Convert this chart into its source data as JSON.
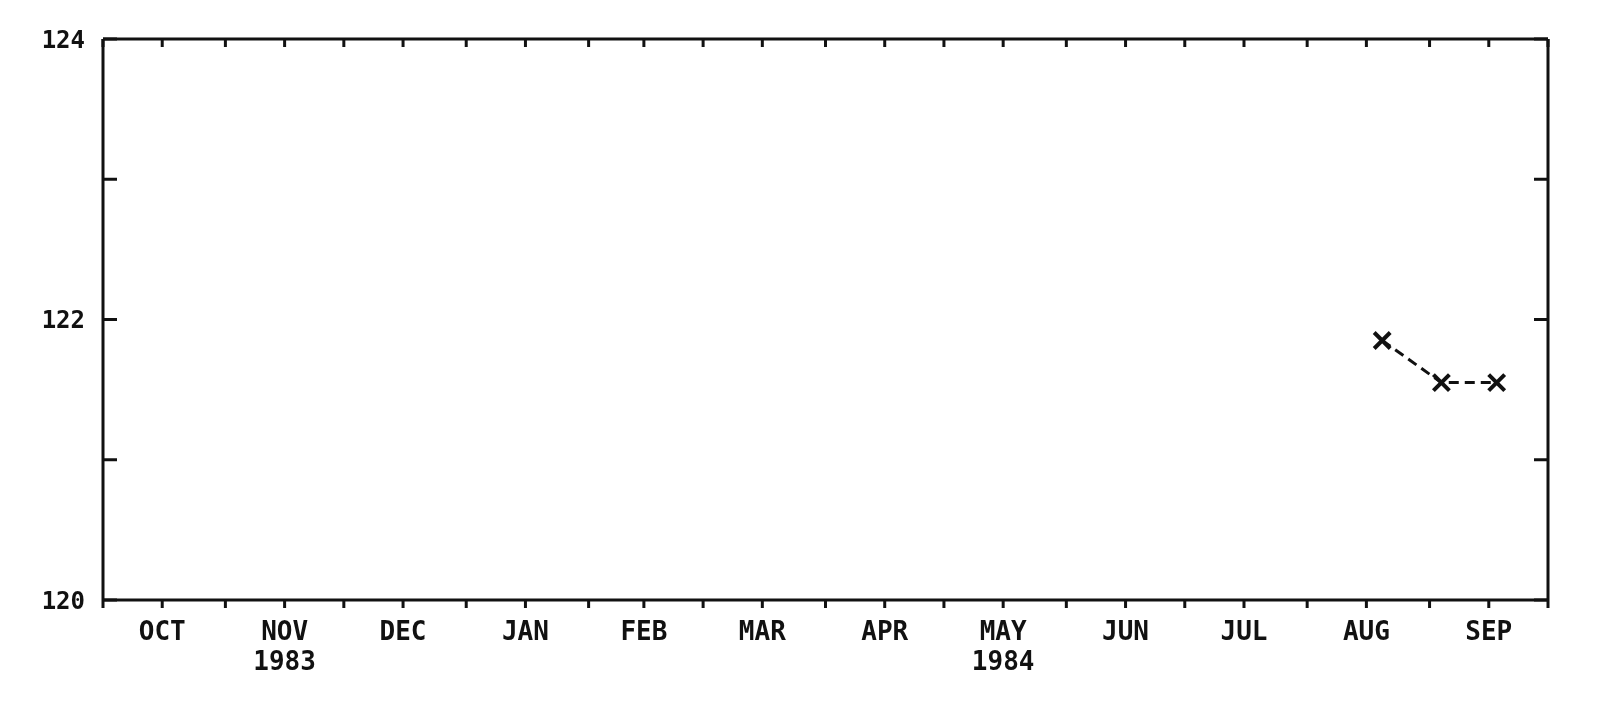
{
  "chart_data": {
    "type": "line",
    "x": [
      "1984-08-20",
      "1984-09-04",
      "1984-09-18"
    ],
    "series": [
      {
        "color": "#111111",
        "values": [
          121.85,
          121.55,
          121.55
        ]
      }
    ],
    "xlim": [
      "1983-10-01",
      "1984-10-01"
    ],
    "xticks": [
      {
        "value": "1983-10-01",
        "label": null
      },
      {
        "value": "1983-10-16",
        "label": "OCT"
      },
      {
        "value": "1983-11-01",
        "label": null
      },
      {
        "value": "1983-11-16",
        "label": "NOV\n1983"
      },
      {
        "value": "1983-12-01",
        "label": null
      },
      {
        "value": "1983-12-16",
        "label": "DEC"
      },
      {
        "value": "1984-01-01",
        "label": null
      },
      {
        "value": "1984-01-16",
        "label": "JAN"
      },
      {
        "value": "1984-02-01",
        "label": null
      },
      {
        "value": "1984-02-15",
        "label": "FEB"
      },
      {
        "value": "1984-03-01",
        "label": null
      },
      {
        "value": "1984-03-16",
        "label": "MAR"
      },
      {
        "value": "1984-04-01",
        "label": null
      },
      {
        "value": "1984-04-16",
        "label": "APR"
      },
      {
        "value": "1984-05-01",
        "label": null
      },
      {
        "value": "1984-05-16",
        "label": "MAY\n1984"
      },
      {
        "value": "1984-06-01",
        "label": null
      },
      {
        "value": "1984-06-16",
        "label": "JUN"
      },
      {
        "value": "1984-07-01",
        "label": null
      },
      {
        "value": "1984-07-16",
        "label": "JUL"
      },
      {
        "value": "1984-08-01",
        "label": null
      },
      {
        "value": "1984-08-16",
        "label": "AUG"
      },
      {
        "value": "1984-09-01",
        "label": null
      },
      {
        "value": "1984-09-16",
        "label": "SEP"
      },
      {
        "value": "1984-10-01",
        "label": null
      }
    ],
    "ylim": [
      120,
      124
    ],
    "yticks": [
      120,
      {
        "value": 121,
        "label": null
      },
      122,
      {
        "value": 123,
        "label": null
      },
      124
    ],
    "grid": false,
    "legend": false,
    "marker": "cross",
    "line_style": "dashed"
  }
}
